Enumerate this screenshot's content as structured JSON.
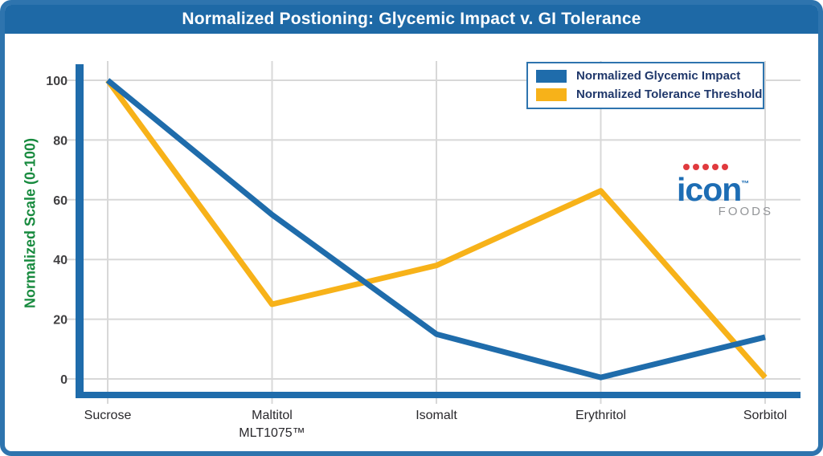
{
  "header": {
    "title": "Normalized Postioning: Glycemic Impact v. GI Tolerance"
  },
  "chart_data": {
    "type": "line",
    "title": "Normalized Postioning: Glycemic Impact v. GI Tolerance",
    "categories": [
      "Sucrose",
      "Maltitol\nMLT1075™",
      "Isomalt",
      "Erythritol",
      "Sorbitol"
    ],
    "series": [
      {
        "name": "Normalized Glycemic Impact",
        "color": "#1f6cab",
        "values": [
          100,
          55,
          15,
          0.5,
          14
        ]
      },
      {
        "name": "Normalized Tolerance Threshold",
        "color": "#f7b219",
        "values": [
          100,
          25,
          38,
          63,
          0.5
        ]
      }
    ],
    "xlabel": "",
    "ylabel": "Normalized Scale (0-100)",
    "yticks": [
      0,
      20,
      40,
      60,
      80,
      100
    ],
    "ylim": [
      0,
      105
    ],
    "grid": true,
    "legend_position": "top-right"
  },
  "colors": {
    "title_band": "#1e69a6",
    "outer_border": "#2e74ae",
    "axis_spine": "#1f6cab",
    "gridline": "#d8d8d8",
    "ytick_text": "#414042",
    "xtick_text": "#29282c",
    "ylabel_green": "#178a3e",
    "legend_text": "#20386b"
  },
  "logo": {
    "word": "icon",
    "tm": "™",
    "sub": "FOODS"
  }
}
